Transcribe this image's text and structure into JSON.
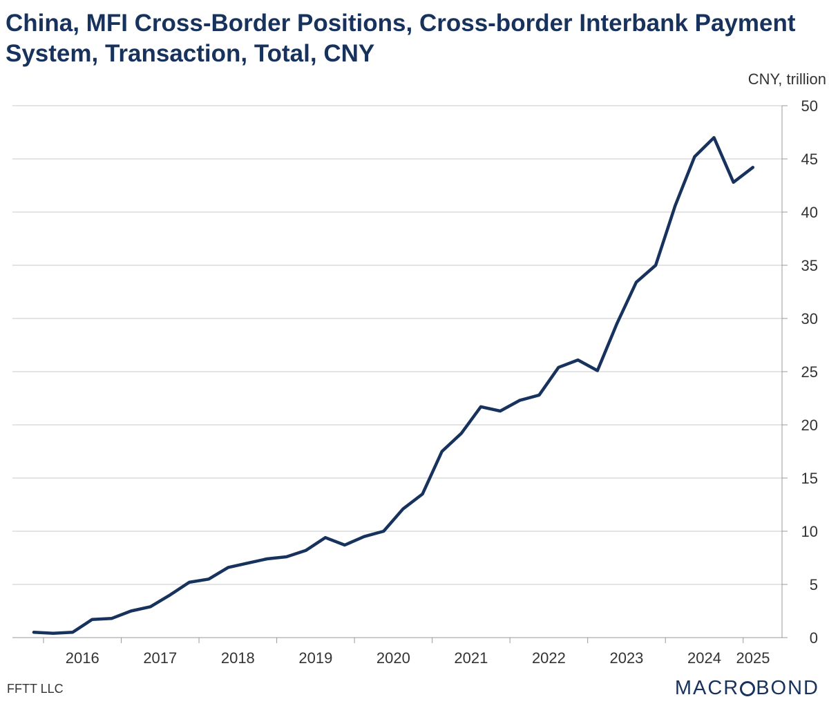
{
  "header": {
    "title": "China, MFI Cross-Border Positions, Cross-border Interbank Payment System, Transaction, Total, CNY"
  },
  "footer": {
    "source": "FFTT LLC",
    "brand_left": "MACR",
    "brand_right": "BOND"
  },
  "colors": {
    "line": "#17325c",
    "grid": "#c8c8c8",
    "title": "#17325c",
    "text": "#333333"
  },
  "chart_data": {
    "type": "line",
    "title": "China, MFI Cross-Border Positions, Cross-border Interbank Payment System, Transaction, Total, CNY",
    "ylabel": "CNY, trillion",
    "ylim": [
      0,
      50
    ],
    "yticks": [
      0,
      5,
      10,
      15,
      20,
      25,
      30,
      35,
      40,
      45,
      50
    ],
    "xlim": [
      2015.6,
      2025.5
    ],
    "xticks": [
      "2016",
      "2017",
      "2018",
      "2019",
      "2020",
      "2021",
      "2022",
      "2023",
      "2024",
      "2025"
    ],
    "grid": true,
    "legend": "none",
    "series": [
      {
        "x": [
          "2015-Q4",
          "2016-Q1",
          "2016-Q2",
          "2016-Q3",
          "2016-Q4",
          "2017-Q1",
          "2017-Q2",
          "2017-Q3",
          "2017-Q4",
          "2018-Q1",
          "2018-Q2",
          "2018-Q3",
          "2018-Q4",
          "2019-Q1",
          "2019-Q2",
          "2019-Q3",
          "2019-Q4",
          "2020-Q1",
          "2020-Q2",
          "2020-Q3",
          "2020-Q4",
          "2021-Q1",
          "2021-Q2",
          "2021-Q3",
          "2021-Q4",
          "2022-Q1",
          "2022-Q2",
          "2022-Q3",
          "2022-Q4",
          "2023-Q1",
          "2023-Q2",
          "2023-Q3",
          "2023-Q4",
          "2024-Q1",
          "2024-Q2",
          "2024-Q3",
          "2024-Q4",
          "2025-Q1"
        ],
        "values": [
          0.5,
          0.4,
          0.5,
          1.7,
          1.8,
          2.5,
          2.9,
          4.0,
          5.2,
          5.5,
          6.6,
          7.0,
          7.4,
          7.6,
          8.2,
          9.4,
          8.7,
          9.5,
          10.0,
          12.1,
          13.5,
          17.5,
          19.2,
          21.7,
          21.3,
          22.3,
          22.8,
          25.4,
          26.1,
          25.1,
          29.5,
          33.4,
          35.0,
          40.6,
          45.2,
          47.0,
          42.8,
          44.2
        ]
      }
    ]
  }
}
